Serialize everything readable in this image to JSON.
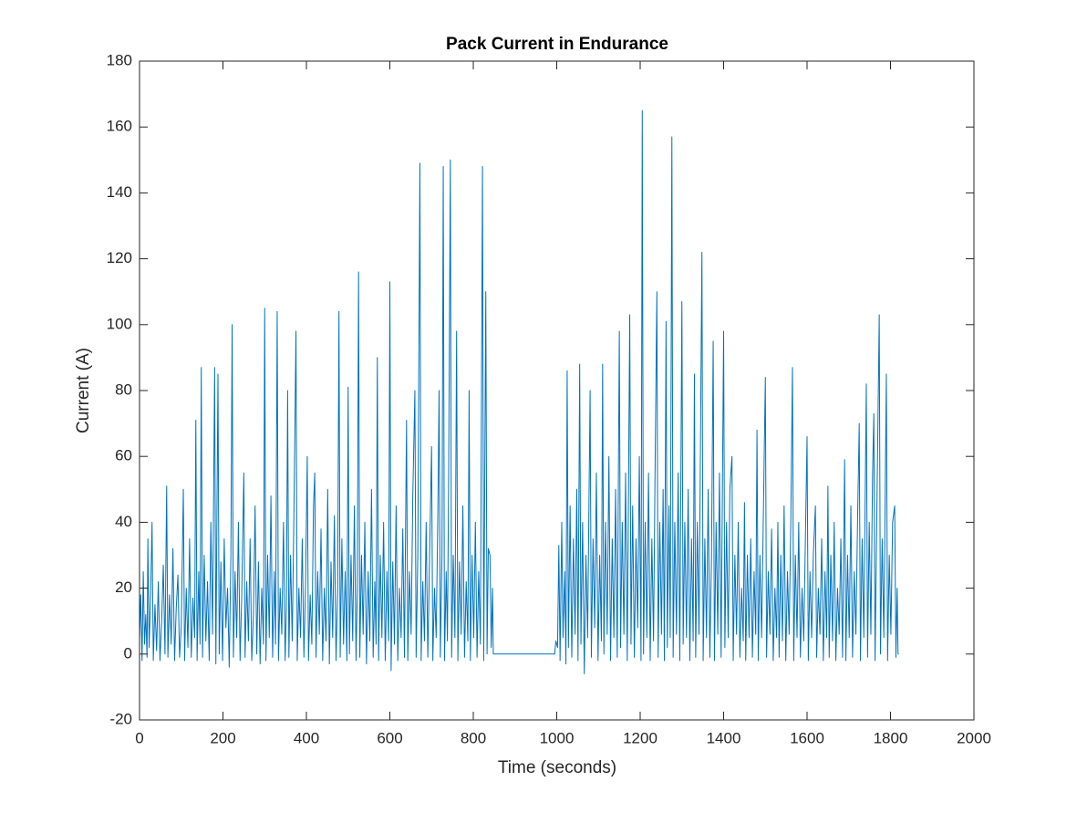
{
  "chart_data": {
    "type": "line",
    "title": "Pack Current in Endurance",
    "xlabel": "Time (seconds)",
    "ylabel": "Current (A)",
    "xlim": [
      0,
      2000
    ],
    "xticks": [
      0,
      200,
      400,
      600,
      800,
      1000,
      1200,
      1400,
      1600,
      1800,
      2000
    ],
    "ylim": [
      -20,
      180
    ],
    "yticks": [
      -20,
      0,
      20,
      40,
      60,
      80,
      100,
      120,
      140,
      160,
      180
    ],
    "grid": false,
    "x": [
      0,
      3,
      6,
      9,
      12,
      15,
      18,
      20,
      23,
      27,
      30,
      33,
      37,
      41,
      45,
      49,
      53,
      57,
      61,
      65,
      68,
      72,
      76,
      80,
      84,
      88,
      92,
      96,
      100,
      105,
      108,
      112,
      116,
      120,
      124,
      128,
      132,
      135,
      138,
      142,
      145,
      148,
      151,
      155,
      159,
      163,
      167,
      171,
      175,
      180,
      183,
      188,
      191,
      195,
      199,
      203,
      207,
      211,
      215,
      219,
      222,
      225,
      229,
      233,
      237,
      241,
      245,
      250,
      253,
      257,
      261,
      265,
      269,
      273,
      277,
      281,
      285,
      289,
      293,
      297,
      300,
      303,
      307,
      311,
      315,
      319,
      323,
      326,
      330,
      333,
      337,
      341,
      345,
      349,
      352,
      355,
      358,
      362,
      366,
      370,
      375,
      378,
      382,
      386,
      390,
      394,
      398,
      402,
      405,
      409,
      413,
      417,
      420,
      423,
      427,
      431,
      435,
      439,
      443,
      447,
      451,
      455,
      459,
      463,
      467,
      471,
      475,
      478,
      481,
      485,
      489,
      493,
      497,
      500,
      503,
      507,
      511,
      515,
      519,
      522,
      525,
      528,
      532,
      536,
      540,
      544,
      548,
      552,
      556,
      560,
      564,
      567,
      570,
      573,
      577,
      581,
      585,
      589,
      593,
      597,
      600,
      603,
      607,
      611,
      615,
      619,
      623,
      627,
      631,
      635,
      640,
      643,
      647,
      651,
      655,
      660,
      663,
      667,
      672,
      675,
      679,
      683,
      687,
      691,
      695,
      700,
      703,
      707,
      711,
      715,
      718,
      721,
      725,
      728,
      731,
      735,
      738,
      741,
      745,
      748,
      752,
      756,
      760,
      763,
      767,
      771,
      775,
      779,
      783,
      787,
      790,
      793,
      797,
      801,
      805,
      809,
      813,
      817,
      822,
      825,
      830,
      833,
      836,
      840,
      843,
      846,
      848,
      850,
      900,
      995,
      998,
      1002,
      1005,
      1008,
      1012,
      1015,
      1019,
      1022,
      1025,
      1028,
      1032,
      1036,
      1040,
      1044,
      1048,
      1051,
      1055,
      1058,
      1062,
      1066,
      1070,
      1074,
      1080,
      1083,
      1087,
      1091,
      1095,
      1099,
      1103,
      1107,
      1110,
      1113,
      1117,
      1121,
      1125,
      1129,
      1133,
      1137,
      1141,
      1145,
      1150,
      1153,
      1157,
      1161,
      1165,
      1169,
      1175,
      1178,
      1182,
      1186,
      1190,
      1194,
      1198,
      1202,
      1205,
      1208,
      1212,
      1216,
      1220,
      1224,
      1228,
      1232,
      1236,
      1240,
      1243,
      1247,
      1251,
      1255,
      1258,
      1262,
      1265,
      1269,
      1272,
      1276,
      1279,
      1283,
      1287,
      1291,
      1295,
      1300,
      1303,
      1307,
      1311,
      1315,
      1319,
      1323,
      1327,
      1330,
      1333,
      1337,
      1341,
      1348,
      1351,
      1355,
      1359,
      1363,
      1367,
      1371,
      1375,
      1378,
      1382,
      1386,
      1390,
      1394,
      1400,
      1403,
      1407,
      1411,
      1415,
      1420,
      1423,
      1427,
      1431,
      1435,
      1439,
      1443,
      1447,
      1450,
      1453,
      1457,
      1461,
      1465,
      1469,
      1473,
      1477,
      1480,
      1483,
      1487,
      1491,
      1495,
      1500,
      1503,
      1507,
      1511,
      1515,
      1519,
      1523,
      1527,
      1530,
      1533,
      1537,
      1541,
      1545,
      1549,
      1553,
      1557,
      1561,
      1565,
      1568,
      1572,
      1576,
      1580,
      1584,
      1588,
      1592,
      1596,
      1600,
      1603,
      1607,
      1611,
      1615,
      1620,
      1623,
      1627,
      1631,
      1635,
      1639,
      1643,
      1647,
      1650,
      1653,
      1657,
      1661,
      1665,
      1669,
      1673,
      1677,
      1681,
      1685,
      1690,
      1693,
      1697,
      1701,
      1705,
      1709,
      1713,
      1717,
      1721,
      1725,
      1728,
      1732,
      1736,
      1742,
      1745,
      1749,
      1753,
      1757,
      1760,
      1763,
      1767,
      1773,
      1776,
      1780,
      1784,
      1790,
      1793,
      1797,
      1801,
      1805,
      1810,
      1813,
      1816,
      1818,
      1820
    ],
    "series": [
      {
        "name": "Pack Current",
        "color": "#0072bd",
        "values": [
          5,
          18,
          -2,
          25,
          3,
          12,
          -1,
          35,
          2,
          20,
          40,
          -2,
          15,
          1,
          22,
          -2,
          10,
          27,
          0,
          51,
          -1,
          18,
          3,
          32,
          -2,
          14,
          24,
          -1,
          8,
          50,
          -2,
          20,
          2,
          35,
          -1,
          17,
          5,
          71,
          -2,
          25,
          3,
          87,
          -1,
          30,
          4,
          22,
          -2,
          40,
          6,
          87,
          -3,
          85,
          0,
          28,
          -2,
          35,
          8,
          20,
          -4,
          30,
          100,
          -1,
          25,
          5,
          40,
          -2,
          18,
          55,
          -1,
          22,
          4,
          35,
          -2,
          12,
          45,
          0,
          28,
          -3,
          20,
          3,
          105,
          -2,
          30,
          5,
          48,
          -1,
          25,
          3,
          104,
          -2,
          20,
          6,
          40,
          -2,
          15,
          80,
          -1,
          30,
          4,
          42,
          98,
          -2,
          20,
          5,
          35,
          -1,
          22,
          60,
          -2,
          18,
          3,
          45,
          55,
          -1,
          25,
          6,
          38,
          -2,
          20,
          4,
          50,
          -3,
          28,
          5,
          42,
          -2,
          20,
          104,
          -1,
          35,
          3,
          25,
          -2,
          81,
          0,
          30,
          4,
          45,
          -2,
          20,
          116,
          -1,
          30,
          6,
          40,
          -3,
          25,
          4,
          50,
          -1,
          22,
          3,
          90,
          -2,
          30,
          5,
          40,
          -2,
          25,
          4,
          113,
          -5,
          28,
          3,
          45,
          -2,
          20,
          5,
          38,
          -1,
          71,
          -2,
          25,
          6,
          48,
          80,
          -1,
          30,
          149,
          -2,
          22,
          4,
          40,
          -1,
          28,
          63,
          -2,
          20,
          5,
          42,
          80,
          -1,
          30,
          148,
          -2,
          25,
          4,
          55,
          150,
          -1,
          30,
          5,
          98,
          -2,
          28,
          6,
          45,
          -1,
          22,
          4,
          80,
          -2,
          30,
          5,
          40,
          -1,
          25,
          3,
          148,
          -2,
          110,
          0,
          32,
          30,
          2,
          20,
          0,
          0,
          0,
          0,
          4,
          2,
          33,
          -2,
          40,
          5,
          25,
          -3,
          86,
          2,
          45,
          -1,
          35,
          6,
          50,
          -2,
          88,
          3,
          40,
          -6,
          30,
          5,
          80,
          -1,
          35,
          8,
          55,
          -2,
          30,
          4,
          88,
          0,
          40,
          6,
          60,
          -2,
          35,
          5,
          50,
          -1,
          98,
          2,
          40,
          6,
          55,
          -2,
          103,
          3,
          45,
          -1,
          35,
          8,
          60,
          -2,
          165,
          0,
          40,
          5,
          55,
          -2,
          35,
          4,
          60,
          110,
          -1,
          40,
          6,
          50,
          -2,
          101,
          2,
          45,
          5,
          157,
          -1,
          40,
          6,
          55,
          -2,
          107,
          3,
          40,
          5,
          50,
          -2,
          35,
          4,
          85,
          -1,
          40,
          6,
          122,
          -2,
          35,
          5,
          50,
          -1,
          30,
          95,
          -2,
          40,
          6,
          55,
          -1,
          98,
          2,
          40,
          5,
          50,
          60,
          -2,
          30,
          6,
          40,
          -1,
          20,
          4,
          46,
          -2,
          30,
          5,
          35,
          -1,
          25,
          6,
          68,
          -2,
          30,
          5,
          40,
          84,
          -1,
          25,
          6,
          38,
          -2,
          20,
          5,
          40,
          -1,
          30,
          4,
          45,
          -2,
          25,
          6,
          40,
          87,
          -2,
          30,
          5,
          40,
          -1,
          20,
          4,
          35,
          66,
          -2,
          25,
          5,
          30,
          45,
          -1,
          20,
          6,
          35,
          -2,
          25,
          5,
          51,
          -1,
          30,
          4,
          40,
          -2,
          20,
          6,
          35,
          -1,
          59,
          -2,
          30,
          5,
          45,
          -1,
          25,
          6,
          40,
          70,
          -2,
          35,
          5,
          82,
          -1,
          40,
          6,
          55,
          73,
          -2,
          40,
          103,
          0,
          35,
          5,
          85,
          -2,
          30,
          6,
          40,
          45,
          -1,
          20,
          0,
          0
        ]
      }
    ]
  }
}
